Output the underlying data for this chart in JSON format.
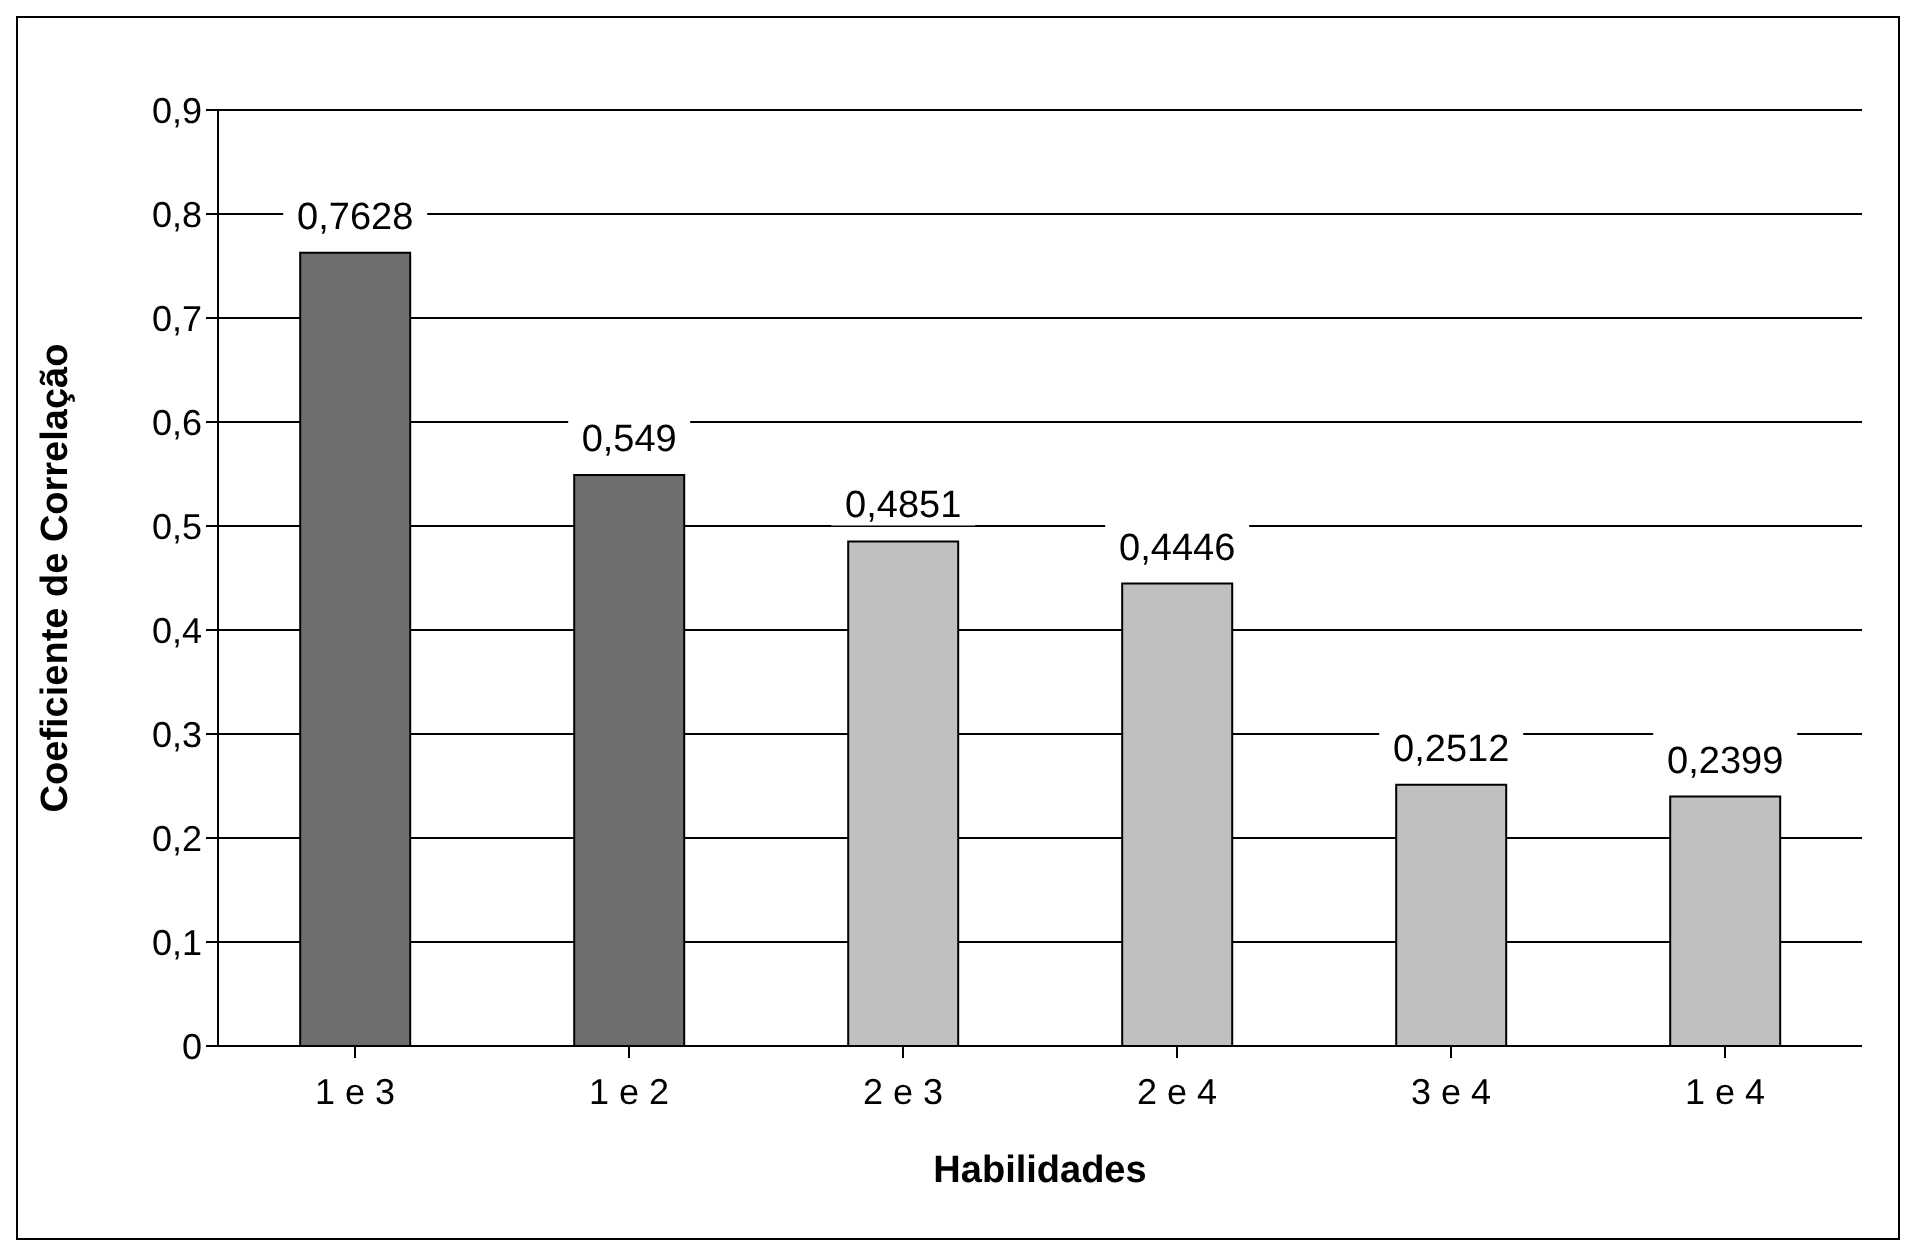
{
  "chart_data": {
    "type": "bar",
    "xlabel": "Habilidades",
    "ylabel": "Coeficiente de Correlação",
    "categories": [
      "1 e 3",
      "1 e 2",
      "2 e 3",
      "2 e 4",
      "3 e 4",
      "1 e 4"
    ],
    "values": [
      0.7628,
      0.549,
      0.4851,
      0.4446,
      0.2512,
      0.2399
    ],
    "colors": [
      "#6e6e6e",
      "#6e6e6e",
      "#c0c0c0",
      "#c0c0c0",
      "#c0c0c0",
      "#c0c0c0"
    ],
    "value_labels": [
      "0,7628",
      "0,549",
      "0,4851",
      "0,4446",
      "0,2512",
      "0,2399"
    ],
    "ylim": [
      0,
      0.9
    ],
    "yticks": [
      {
        "value": 0,
        "label": "0"
      },
      {
        "value": 0.1,
        "label": "0,1"
      },
      {
        "value": 0.2,
        "label": "0,2"
      },
      {
        "value": 0.3,
        "label": "0,3"
      },
      {
        "value": 0.4,
        "label": "0,4"
      },
      {
        "value": 0.5,
        "label": "0,5"
      },
      {
        "value": 0.6,
        "label": "0,6"
      },
      {
        "value": 0.7,
        "label": "0,7"
      },
      {
        "value": 0.8,
        "label": "0,8"
      },
      {
        "value": 0.9,
        "label": "0,9"
      }
    ],
    "grid": "y"
  }
}
